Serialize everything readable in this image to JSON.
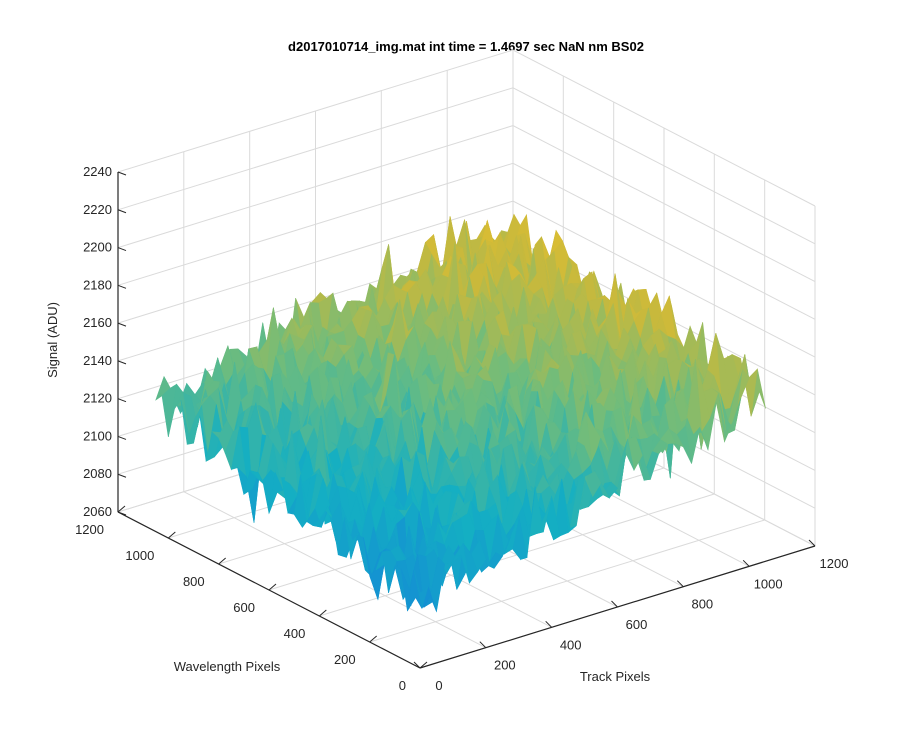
{
  "chart_data": {
    "type": "surface",
    "title": "d2017010714_img.mat int time = 1.4697 sec  NaN nm BS02",
    "xlabel": "Track Pixels",
    "ylabel": "Wavelength Pixels",
    "zlabel": "Signal (ADU)",
    "xlim": [
      0,
      1200
    ],
    "ylim": [
      0,
      1200
    ],
    "zlim": [
      2060,
      2240
    ],
    "x_ticks": [
      0,
      200,
      400,
      600,
      800,
      1000,
      1200
    ],
    "y_ticks": [
      0,
      200,
      400,
      600,
      800,
      1000,
      1200
    ],
    "z_ticks": [
      2060,
      2080,
      2100,
      2120,
      2140,
      2160,
      2180,
      2200,
      2220,
      2240
    ],
    "x_tick_labels": [
      "0",
      "200",
      "400",
      "600",
      "800",
      "1000",
      "1200"
    ],
    "y_tick_labels": [
      "0",
      "200",
      "400",
      "600",
      "800",
      "1000",
      "1200"
    ],
    "z_tick_labels": [
      "2060",
      "2080",
      "2100",
      "2120",
      "2140",
      "2160",
      "2180",
      "2200",
      "2220",
      "2240"
    ],
    "grid": true,
    "colormap": "parula",
    "data_extent": {
      "x": [
        0,
        1050
      ],
      "y": [
        0,
        1050
      ]
    },
    "surface": {
      "description_values": {
        "min_signal": 2066,
        "max_signal": 2222,
        "mean_near_origin": 2095,
        "mean_at_far_corner": 2170,
        "mean_at_x_max_edge": 2150,
        "mean_at_y_max_edge": 2130
      }
    }
  }
}
